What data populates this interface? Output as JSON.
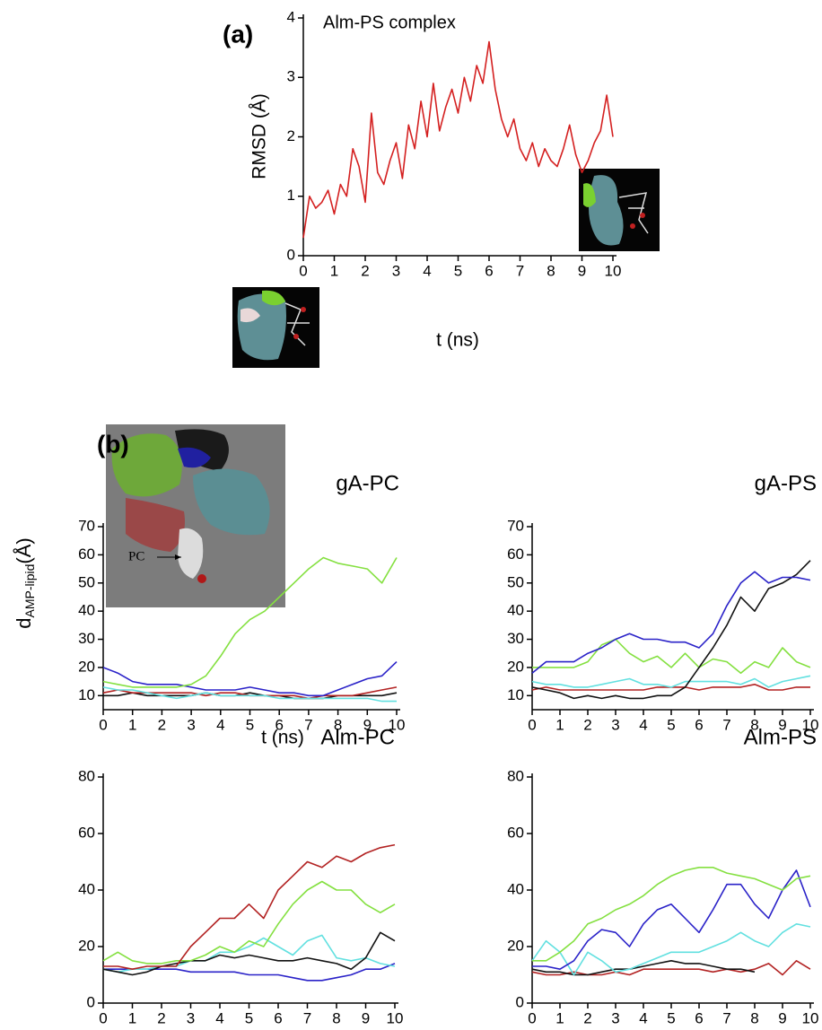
{
  "chart_data": [
    {
      "type": "line",
      "panel_label": "(a)",
      "title": "Alm-PS complex",
      "x_label": "t (ns)",
      "y_label": "RMSD (Å)",
      "x": [
        0,
        0.2,
        0.4,
        0.6,
        0.8,
        1,
        1.2,
        1.4,
        1.6,
        1.8,
        2,
        2.2,
        2.4,
        2.6,
        2.8,
        3,
        3.2,
        3.4,
        3.6,
        3.8,
        4,
        4.2,
        4.4,
        4.6,
        4.8,
        5,
        5.2,
        5.4,
        5.6,
        5.8,
        6,
        6.2,
        6.4,
        6.6,
        6.8,
        7,
        7.2,
        7.4,
        7.6,
        7.8,
        8,
        8.2,
        8.4,
        8.6,
        8.8,
        9,
        9.2,
        9.4,
        9.6,
        9.8,
        10
      ],
      "values": [
        0.3,
        1.0,
        0.8,
        0.9,
        1.1,
        0.7,
        1.2,
        1.0,
        1.8,
        1.5,
        0.9,
        2.4,
        1.4,
        1.2,
        1.6,
        1.9,
        1.3,
        2.2,
        1.8,
        2.6,
        2.0,
        2.9,
        2.1,
        2.5,
        2.8,
        2.4,
        3.0,
        2.6,
        3.2,
        2.9,
        3.6,
        2.8,
        2.3,
        2.0,
        2.3,
        1.8,
        1.6,
        1.9,
        1.5,
        1.8,
        1.6,
        1.5,
        1.8,
        2.2,
        1.7,
        1.4,
        1.6,
        1.9,
        2.1,
        2.7,
        2.0
      ],
      "color": "#d42020",
      "xlim": [
        0,
        10
      ],
      "xticks": [
        0,
        1,
        2,
        3,
        4,
        5,
        6,
        7,
        8,
        9,
        10
      ],
      "ylim": [
        0,
        4
      ],
      "yticks": [
        0,
        1,
        2,
        3,
        4
      ]
    },
    {
      "type": "line",
      "panel_label": "(b)",
      "title": "gA-PC",
      "x_label": "t (ns)",
      "y_label_main": "d",
      "y_label_sub": "AMP-lipid",
      "y_label_unit": "(Å)",
      "inset_label": "PC",
      "x": [
        0,
        0.5,
        1,
        1.5,
        2,
        2.5,
        3,
        3.5,
        4,
        4.5,
        5,
        5.5,
        6,
        6.5,
        7,
        7.5,
        8,
        8.5,
        9,
        9.5,
        10
      ],
      "series": [
        {
          "color": "#111111",
          "values": [
            10,
            10,
            11,
            10,
            10,
            10,
            10,
            11,
            10,
            10,
            11,
            10,
            10,
            9,
            9,
            9,
            10,
            10,
            10,
            10,
            11
          ]
        },
        {
          "color": "#b22222",
          "values": [
            11,
            12,
            11,
            11,
            11,
            11,
            11,
            10,
            11,
            11,
            10,
            10,
            10,
            10,
            9,
            10,
            10,
            10,
            11,
            12,
            13
          ]
        },
        {
          "color": "#62e0e0",
          "values": [
            13,
            12,
            12,
            11,
            10,
            9,
            10,
            11,
            10,
            10,
            10,
            10,
            9,
            9,
            9,
            9,
            9,
            9,
            9,
            8,
            8
          ]
        },
        {
          "color": "#2a22c8",
          "values": [
            20,
            18,
            15,
            14,
            14,
            14,
            13,
            12,
            12,
            12,
            13,
            12,
            11,
            11,
            10,
            10,
            12,
            14,
            16,
            17,
            22
          ]
        },
        {
          "color": "#84e040",
          "values": [
            15,
            14,
            13,
            13,
            13,
            13,
            14,
            17,
            24,
            32,
            37,
            40,
            45,
            50,
            55,
            59,
            57,
            56,
            55,
            50,
            59
          ]
        }
      ],
      "xlim": [
        0,
        10
      ],
      "xticks": [
        0,
        1,
        2,
        3,
        4,
        5,
        6,
        7,
        8,
        9,
        10
      ],
      "ylim": [
        5,
        70
      ],
      "yticks": [
        10,
        20,
        30,
        40,
        50,
        60,
        70
      ]
    },
    {
      "type": "line",
      "title": "gA-PS",
      "x": [
        0,
        0.5,
        1,
        1.5,
        2,
        2.5,
        3,
        3.5,
        4,
        4.5,
        5,
        5.5,
        6,
        6.5,
        7,
        7.5,
        8,
        8.5,
        9,
        9.5,
        10
      ],
      "series": [
        {
          "color": "#b22222",
          "values": [
            12,
            13,
            12,
            12,
            12,
            12,
            12,
            12,
            12,
            13,
            13,
            13,
            12,
            13,
            13,
            13,
            14,
            12,
            12,
            13,
            13
          ]
        },
        {
          "color": "#62e0e0",
          "values": [
            15,
            14,
            14,
            13,
            13,
            14,
            15,
            16,
            14,
            14,
            13,
            15,
            15,
            15,
            15,
            14,
            16,
            13,
            15,
            16,
            17
          ]
        },
        {
          "color": "#84e040",
          "values": [
            20,
            20,
            20,
            20,
            22,
            28,
            30,
            25,
            22,
            24,
            20,
            25,
            20,
            23,
            22,
            18,
            22,
            20,
            27,
            22,
            20
          ]
        },
        {
          "color": "#111111",
          "values": [
            13,
            12,
            11,
            9,
            10,
            9,
            10,
            9,
            9,
            10,
            10,
            13,
            20,
            27,
            35,
            45,
            40,
            48,
            50,
            53,
            58
          ]
        },
        {
          "color": "#2a22c8",
          "values": [
            18,
            22,
            22,
            22,
            25,
            27,
            30,
            32,
            30,
            30,
            29,
            29,
            27,
            32,
            42,
            50,
            54,
            50,
            52,
            52,
            51
          ]
        }
      ],
      "xlim": [
        0,
        10
      ],
      "xticks": [
        0,
        1,
        2,
        3,
        4,
        5,
        6,
        7,
        8,
        9,
        10
      ],
      "ylim": [
        5,
        70
      ],
      "yticks": [
        10,
        20,
        30,
        40,
        50,
        60,
        70
      ]
    },
    {
      "type": "line",
      "title": "Alm-PC",
      "x": [
        0,
        0.5,
        1,
        1.5,
        2,
        2.5,
        3,
        3.5,
        4,
        4.5,
        5,
        5.5,
        6,
        6.5,
        7,
        7.5,
        8,
        8.5,
        9,
        9.5,
        10
      ],
      "series": [
        {
          "color": "#2a22c8",
          "values": [
            12,
            12,
            12,
            12,
            12,
            12,
            11,
            11,
            11,
            11,
            10,
            10,
            10,
            9,
            8,
            8,
            9,
            10,
            12,
            12,
            14
          ]
        },
        {
          "color": "#62e0e0",
          "values": [
            12,
            11,
            12,
            12,
            13,
            13,
            15,
            15,
            18,
            18,
            20,
            23,
            20,
            17,
            22,
            24,
            16,
            15,
            16,
            14,
            13
          ]
        },
        {
          "color": "#111111",
          "values": [
            12,
            11,
            10,
            11,
            13,
            14,
            15,
            15,
            17,
            16,
            17,
            16,
            15,
            15,
            16,
            15,
            14,
            12,
            16,
            25,
            22
          ]
        },
        {
          "color": "#84e040",
          "values": [
            15,
            18,
            15,
            14,
            14,
            15,
            15,
            17,
            20,
            18,
            22,
            20,
            28,
            35,
            40,
            43,
            40,
            40,
            35,
            32,
            35
          ]
        },
        {
          "color": "#b22222",
          "values": [
            13,
            13,
            12,
            13,
            13,
            13,
            20,
            25,
            30,
            30,
            35,
            30,
            40,
            45,
            50,
            48,
            52,
            50,
            53,
            55,
            56
          ]
        }
      ],
      "xlim": [
        0,
        10
      ],
      "xticks": [
        0,
        1,
        2,
        3,
        4,
        5,
        6,
        7,
        8,
        9,
        10
      ],
      "ylim": [
        0,
        80
      ],
      "yticks": [
        0,
        20,
        40,
        60,
        80
      ]
    },
    {
      "type": "line",
      "title": "Alm-PS",
      "x": [
        0,
        0.5,
        1,
        1.5,
        2,
        2.5,
        3,
        3.5,
        4,
        4.5,
        5,
        5.5,
        6,
        6.5,
        7,
        7.5,
        8,
        8.5,
        9,
        9.5,
        10
      ],
      "series": [
        {
          "color": "#b22222",
          "values": [
            11,
            10,
            10,
            11,
            10,
            10,
            11,
            10,
            12,
            12,
            12,
            12,
            12,
            11,
            12,
            11,
            12,
            14,
            10,
            15,
            12
          ]
        },
        {
          "color": "#111111",
          "values": [
            12,
            11,
            11,
            10,
            10,
            11,
            12,
            12,
            13,
            14,
            15,
            14,
            14,
            13,
            12,
            12,
            11,
            null,
            null,
            null,
            null
          ]
        },
        {
          "color": "#62e0e0",
          "values": [
            15,
            22,
            18,
            10,
            18,
            15,
            11,
            12,
            14,
            16,
            18,
            18,
            18,
            20,
            22,
            25,
            22,
            20,
            25,
            28,
            27
          ]
        },
        {
          "color": "#2a22c8",
          "values": [
            13,
            13,
            12,
            15,
            22,
            26,
            25,
            20,
            28,
            33,
            35,
            30,
            25,
            33,
            42,
            42,
            35,
            30,
            40,
            47,
            34
          ]
        },
        {
          "color": "#84e040",
          "values": [
            15,
            15,
            18,
            22,
            28,
            30,
            33,
            35,
            38,
            42,
            45,
            47,
            48,
            48,
            46,
            45,
            44,
            42,
            40,
            44,
            45
          ]
        }
      ],
      "xlim": [
        0,
        10
      ],
      "xticks": [
        0,
        1,
        2,
        3,
        4,
        5,
        6,
        7,
        8,
        9,
        10
      ],
      "ylim": [
        0,
        80
      ],
      "yticks": [
        0,
        20,
        40,
        60,
        80
      ]
    }
  ]
}
